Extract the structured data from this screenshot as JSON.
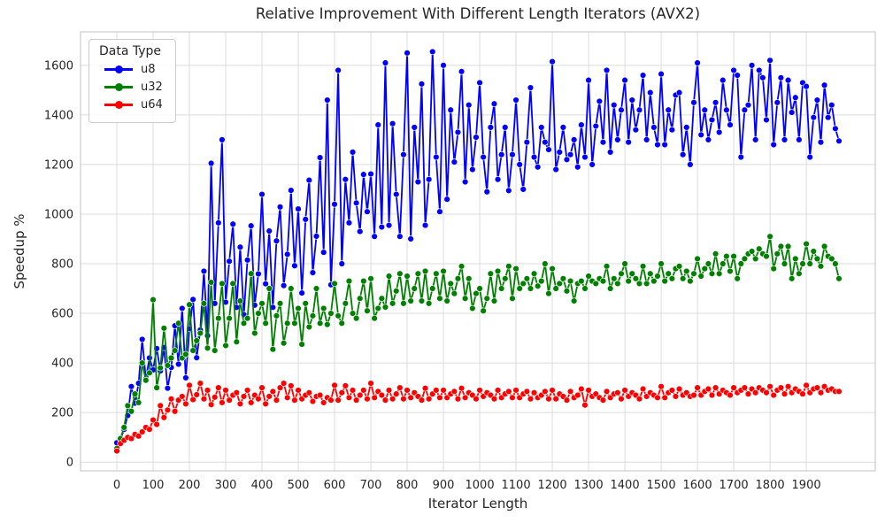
{
  "chart_data": {
    "type": "line",
    "title": "Relative Improvement With Different Length Iterators (AVX2)",
    "xlabel": "Iterator Length",
    "ylabel": "Speedup %",
    "legend_title": "Data Type",
    "legend_position": "upper-left",
    "grid": true,
    "grid_color": "#dcdcdc",
    "spine_color": "#cccccc",
    "text_color": "#262626",
    "background_color": "#ffffff",
    "xlim": [
      -100,
      2090
    ],
    "ylim": [
      -35,
      1735
    ],
    "xticks": [
      0,
      100,
      200,
      300,
      400,
      500,
      600,
      700,
      800,
      900,
      1000,
      1100,
      1200,
      1300,
      1400,
      1500,
      1600,
      1700,
      1800,
      1900
    ],
    "yticks": [
      0,
      200,
      400,
      600,
      800,
      1000,
      1200,
      1400,
      1600
    ],
    "x": {
      "start": 0,
      "step": 10,
      "count": 200
    },
    "series": [
      {
        "name": "u8",
        "color": "#0000ff",
        "values": [
          78,
          92,
          132,
          188,
          305,
          238,
          318,
          495,
          335,
          420,
          372,
          458,
          368,
          462,
          298,
          382,
          550,
          395,
          620,
          340,
          538,
          656,
          421,
          533,
          770,
          510,
          1205,
          640,
          965,
          1300,
          645,
          810,
          960,
          624,
          867,
          595,
          815,
          953,
          633,
          759,
          1080,
          719,
          932,
          624,
          892,
          1029,
          712,
          838,
          1096,
          792,
          1021,
          682,
          979,
          1137,
          764,
          911,
          1228,
          846,
          1460,
          715,
          1040,
          1580,
          800,
          1140,
          965,
          1250,
          1045,
          930,
          1160,
          1010,
          1162,
          910,
          1360,
          948,
          1610,
          955,
          1365,
          1080,
          910,
          1240,
          1650,
          900,
          1350,
          1130,
          1525,
          955,
          1140,
          1655,
          1230,
          1010,
          1600,
          1060,
          1420,
          1210,
          1330,
          1575,
          1130,
          1440,
          1180,
          1310,
          1530,
          1230,
          1090,
          1350,
          1445,
          1140,
          1240,
          1350,
          1095,
          1240,
          1460,
          1200,
          1100,
          1290,
          1510,
          1230,
          1190,
          1350,
          1290,
          1260,
          1615,
          1180,
          1250,
          1350,
          1220,
          1240,
          1300,
          1190,
          1360,
          1230,
          1540,
          1200,
          1355,
          1455,
          1290,
          1580,
          1250,
          1440,
          1300,
          1420,
          1540,
          1290,
          1460,
          1340,
          1420,
          1560,
          1300,
          1490,
          1350,
          1280,
          1565,
          1280,
          1420,
          1340,
          1480,
          1490,
          1240,
          1350,
          1200,
          1450,
          1610,
          1320,
          1420,
          1300,
          1380,
          1450,
          1330,
          1540,
          1420,
          1360,
          1580,
          1560,
          1230,
          1420,
          1440,
          1600,
          1300,
          1580,
          1550,
          1380,
          1620,
          1280,
          1450,
          1550,
          1300,
          1540,
          1410,
          1470,
          1300,
          1530,
          1515,
          1230,
          1390,
          1460,
          1290,
          1520,
          1390,
          1440,
          1345,
          1295
        ]
      },
      {
        "name": "u32",
        "color": "#008000",
        "values": [
          55,
          95,
          140,
          228,
          205,
          275,
          240,
          400,
          330,
          360,
          655,
          300,
          380,
          540,
          390,
          420,
          450,
          560,
          420,
          435,
          635,
          450,
          490,
          520,
          640,
          460,
          725,
          450,
          580,
          720,
          470,
          580,
          720,
          485,
          650,
          560,
          580,
          760,
          520,
          600,
          640,
          560,
          700,
          455,
          590,
          640,
          480,
          560,
          700,
          560,
          620,
          475,
          640,
          545,
          590,
          700,
          560,
          620,
          555,
          600,
          720,
          590,
          560,
          640,
          730,
          600,
          580,
          660,
          730,
          610,
          740,
          580,
          620,
          660,
          625,
          750,
          640,
          690,
          760,
          640,
          750,
          650,
          700,
          760,
          650,
          770,
          640,
          700,
          760,
          660,
          770,
          650,
          720,
          680,
          740,
          790,
          660,
          740,
          620,
          680,
          700,
          610,
          660,
          760,
          650,
          770,
          700,
          740,
          790,
          660,
          780,
          700,
          720,
          740,
          700,
          760,
          710,
          730,
          800,
          680,
          780,
          700,
          720,
          740,
          690,
          730,
          650,
          720,
          730,
          700,
          750,
          730,
          720,
          740,
          730,
          790,
          700,
          740,
          720,
          760,
          800,
          730,
          760,
          740,
          720,
          790,
          720,
          760,
          730,
          750,
          800,
          730,
          760,
          740,
          780,
          790,
          740,
          770,
          730,
          760,
          820,
          750,
          780,
          800,
          760,
          840,
          760,
          800,
          830,
          770,
          830,
          740,
          800,
          820,
          840,
          850,
          820,
          860,
          840,
          830,
          910,
          780,
          840,
          870,
          800,
          870,
          740,
          820,
          760,
          800,
          880,
          800,
          850,
          820,
          790,
          870,
          830,
          820,
          800,
          740
        ]
      },
      {
        "name": "u64",
        "color": "#ff0000",
        "values": [
          45,
          75,
          88,
          100,
          95,
          112,
          105,
          122,
          140,
          132,
          170,
          152,
          228,
          180,
          210,
          255,
          205,
          250,
          265,
          235,
          310,
          252,
          272,
          318,
          255,
          290,
          232,
          262,
          300,
          240,
          290,
          250,
          270,
          280,
          235,
          265,
          290,
          240,
          270,
          255,
          300,
          235,
          265,
          285,
          250,
          300,
          318,
          260,
          308,
          250,
          290,
          255,
          270,
          280,
          245,
          265,
          270,
          240,
          260,
          250,
          310,
          250,
          280,
          308,
          260,
          290,
          250,
          270,
          290,
          255,
          318,
          260,
          285,
          270,
          250,
          290,
          255,
          275,
          300,
          255,
          290,
          260,
          280,
          265,
          250,
          298,
          255,
          275,
          290,
          260,
          290,
          260,
          275,
          285,
          255,
          298,
          260,
          280,
          270,
          255,
          290,
          265,
          280,
          270,
          255,
          290,
          260,
          275,
          285,
          260,
          290,
          260,
          275,
          285,
          255,
          280,
          260,
          270,
          285,
          255,
          290,
          255,
          275,
          265,
          250,
          285,
          260,
          270,
          295,
          230,
          290,
          265,
          275,
          260,
          250,
          285,
          260,
          275,
          280,
          255,
          290,
          265,
          280,
          270,
          255,
          295,
          265,
          280,
          270,
          260,
          305,
          260,
          280,
          290,
          265,
          295,
          270,
          280,
          265,
          270,
          300,
          270,
          285,
          295,
          270,
          300,
          275,
          290,
          280,
          270,
          300,
          280,
          290,
          300,
          275,
          295,
          280,
          300,
          290,
          280,
          305,
          270,
          290,
          300,
          275,
          305,
          280,
          295,
          285,
          275,
          310,
          280,
          295,
          300,
          280,
          305,
          290,
          295,
          285,
          285
        ]
      }
    ]
  }
}
